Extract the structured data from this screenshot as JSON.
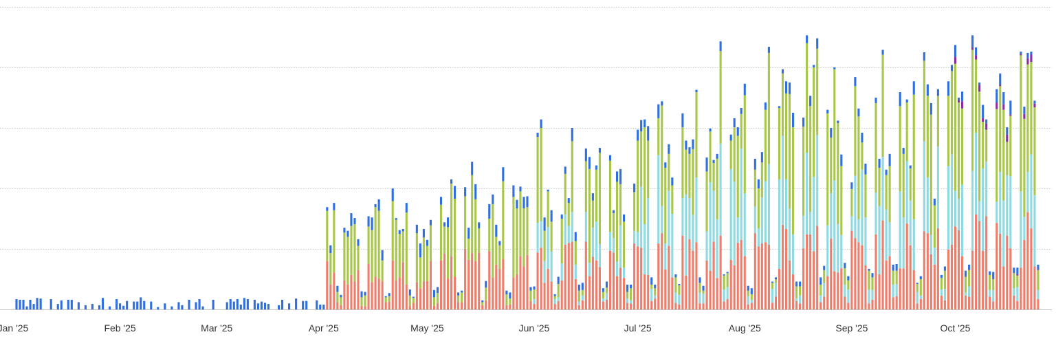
{
  "chart_data": {
    "type": "bar",
    "stacked": true,
    "title": "",
    "xlabel": "",
    "ylabel": "",
    "grid": true,
    "ylim": [
      0,
      500
    ],
    "x_range": [
      "2025-01-02",
      "2025-10-25"
    ],
    "x_ticks": [
      {
        "date": "2025-01-01",
        "label": "Jan '25"
      },
      {
        "date": "2025-02-01",
        "label": "Feb '25"
      },
      {
        "date": "2025-03-01",
        "label": "Mar '25"
      },
      {
        "date": "2025-04-01",
        "label": "Apr '25"
      },
      {
        "date": "2025-05-01",
        "label": "May '25"
      },
      {
        "date": "2025-06-01",
        "label": "Jun '25"
      },
      {
        "date": "2025-07-01",
        "label": "Jul '25"
      },
      {
        "date": "2025-08-01",
        "label": "Aug '25"
      },
      {
        "date": "2025-09-01",
        "label": "Sep '25"
      },
      {
        "date": "2025-10-01",
        "label": "Oct '25"
      }
    ],
    "series": [
      {
        "color": "#ef7d6b",
        "values": []
      },
      {
        "color": "#8fd9e0",
        "values": []
      },
      {
        "color": "#a8c74a",
        "values": []
      },
      {
        "color": "#8b2ea1",
        "values": []
      },
      {
        "color": "#2f6fe0",
        "values": []
      }
    ]
  }
}
